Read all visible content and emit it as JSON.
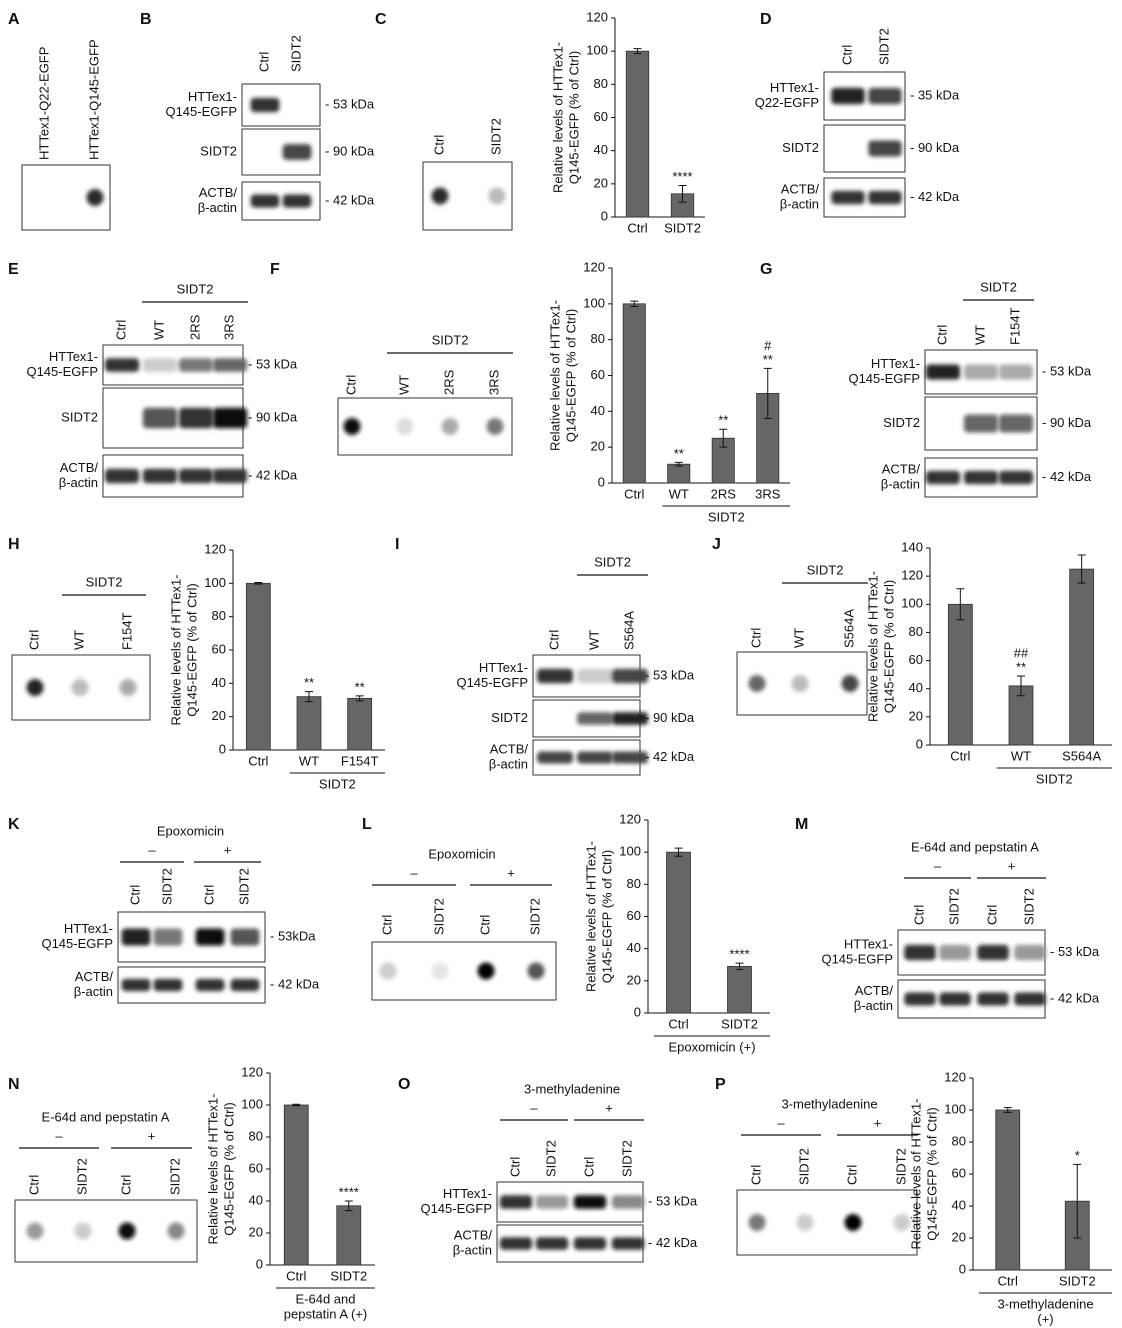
{
  "panels": [
    {
      "letter": "A",
      "type": "dot",
      "lanes": [
        "HTTex1-Q22-EGFP",
        "HTTex1-Q145-EGFP"
      ],
      "dots": [
        null,
        "#2a2a2a"
      ]
    },
    {
      "letter": "B",
      "type": "western",
      "lanes": [
        "Ctrl",
        "SIDT2"
      ],
      "rows": [
        {
          "label": [
            "HTTex1-",
            "Q145-EGFP"
          ],
          "kda": "- 53 kDa",
          "bands": [
            "#333",
            null
          ]
        },
        {
          "label": [
            "SIDT2"
          ],
          "kda": "- 90 kDa",
          "bands": [
            null,
            "#444"
          ]
        },
        {
          "label": [
            "ACTB/",
            "β-actin"
          ],
          "kda": "- 42 kDa",
          "bands": [
            "#333",
            "#333"
          ]
        }
      ]
    },
    {
      "letter": "C",
      "type": "dot",
      "lanes": [
        "Ctrl",
        "SIDT2"
      ],
      "dots": [
        "#2a2a2a",
        "#bbb"
      ]
    },
    {
      "letter": "D",
      "type": "western",
      "lanes": [
        "Ctrl",
        "SIDT2"
      ],
      "rows": [
        {
          "label": [
            "HTTex1-",
            "Q22-EGFP"
          ],
          "kda": "- 35 kDa",
          "bands": [
            "#222",
            "#444"
          ]
        },
        {
          "label": [
            "SIDT2"
          ],
          "kda": "- 90 kDa",
          "bands": [
            null,
            "#444"
          ]
        },
        {
          "label": [
            "ACTB/",
            "β-actin"
          ],
          "kda": "- 42 kDa",
          "bands": [
            "#333",
            "#333"
          ]
        }
      ]
    },
    {
      "letter": "E",
      "type": "western",
      "group": "SIDT2",
      "lanes": [
        "Ctrl",
        "WT",
        "2RS",
        "3RS"
      ],
      "rows": [
        {
          "label": [
            "HTTex1-",
            "Q145-EGFP"
          ],
          "kda": "- 53 kDa",
          "bands": [
            "#333",
            "#ccc",
            "#777",
            "#666"
          ]
        },
        {
          "label": [
            "SIDT2"
          ],
          "kda": "- 90 kDa",
          "bands": [
            null,
            "#555",
            "#333",
            "#111"
          ]
        },
        {
          "label": [
            "ACTB/",
            "β-actin"
          ],
          "kda": "- 42 kDa",
          "bands": [
            "#333",
            "#333",
            "#333",
            "#333"
          ]
        }
      ]
    },
    {
      "letter": "F",
      "type": "dot",
      "group": "SIDT2",
      "lanes": [
        "Ctrl",
        "WT",
        "2RS",
        "3RS"
      ],
      "dots": [
        "#111",
        "#ddd",
        "#aaa",
        "#777"
      ]
    },
    {
      "letter": "G",
      "type": "western",
      "group": "SIDT2",
      "lanes": [
        "Ctrl",
        "WT",
        "F154T"
      ],
      "rows": [
        {
          "label": [
            "HTTex1-",
            "Q145-EGFP"
          ],
          "kda": "- 53 kDa",
          "bands": [
            "#222",
            "#aaa",
            "#aaa"
          ]
        },
        {
          "label": [
            "SIDT2"
          ],
          "kda": "- 90 kDa",
          "bands": [
            null,
            "#666",
            "#666"
          ]
        },
        {
          "label": [
            "ACTB/",
            "β-actin"
          ],
          "kda": "- 42 kDa",
          "bands": [
            "#333",
            "#333",
            "#333"
          ]
        }
      ]
    },
    {
      "letter": "H",
      "type": "dot",
      "group": "SIDT2",
      "lanes": [
        "Ctrl",
        "WT",
        "F154T"
      ],
      "dots": [
        "#222",
        "#bbb",
        "#aaa"
      ]
    },
    {
      "letter": "I",
      "type": "western",
      "group": "SIDT2",
      "lanes": [
        "Ctrl",
        "WT",
        "S564A"
      ],
      "rows": [
        {
          "label": [
            "HTTex1-",
            "Q145-EGFP"
          ],
          "kda": "- 53 kDa",
          "bands": [
            "#333",
            "#ccc",
            "#444"
          ]
        },
        {
          "label": [
            "SIDT2"
          ],
          "kda": "- 90 kDa",
          "bands": [
            null,
            "#666",
            "#222"
          ]
        },
        {
          "label": [
            "ACTB/",
            "β-actin"
          ],
          "kda": "- 42 kDa",
          "bands": [
            "#444",
            "#444",
            "#444"
          ]
        }
      ]
    },
    {
      "letter": "J",
      "type": "dot",
      "group": "SIDT2",
      "lanes": [
        "Ctrl",
        "WT",
        "S564A"
      ],
      "dots": [
        "#666",
        "#bbb",
        "#444"
      ]
    },
    {
      "letter": "K",
      "type": "western",
      "treatment": "Epoxomicin",
      "conditions": [
        "–",
        "+"
      ],
      "lanes": [
        "Ctrl",
        "SIDT2",
        "Ctrl",
        "SIDT2"
      ],
      "rows": [
        {
          "label": [
            "HTTex1-",
            "Q145-EGFP"
          ],
          "kda": "- 53kDa",
          "bands": [
            "#222",
            "#777",
            "#111",
            "#555"
          ]
        },
        {
          "label": [
            "ACTB/",
            "β-actin"
          ],
          "kda": "- 42 kDa",
          "bands": [
            "#333",
            "#333",
            "#333",
            "#333"
          ]
        }
      ]
    },
    {
      "letter": "L",
      "type": "dot",
      "treatment": "Epoxomicin",
      "conditions": [
        "–",
        "+"
      ],
      "lanes": [
        "Ctrl",
        "SIDT2",
        "Ctrl",
        "SIDT2"
      ],
      "dots": [
        "#ccc",
        "#e4e4e4",
        "#000",
        "#555"
      ]
    },
    {
      "letter": "M",
      "type": "western",
      "treatment": "E-64d and pepstatin A",
      "conditions": [
        "–",
        "+"
      ],
      "lanes": [
        "Ctrl",
        "SIDT2",
        "Ctrl",
        "SIDT2"
      ],
      "rows": [
        {
          "label": [
            "HTTex1-",
            "Q145-EGFP"
          ],
          "kda": "- 53 kDa",
          "bands": [
            "#333",
            "#999",
            "#333",
            "#999"
          ]
        },
        {
          "label": [
            "ACTB/",
            "β-actin"
          ],
          "kda": "- 42 kDa",
          "bands": [
            "#333",
            "#333",
            "#333",
            "#333"
          ]
        }
      ]
    },
    {
      "letter": "N",
      "type": "dot",
      "treatment": "E-64d and pepstatin A",
      "conditions": [
        "–",
        "+"
      ],
      "lanes": [
        "Ctrl",
        "SIDT2",
        "Ctrl",
        "SIDT2"
      ],
      "dots": [
        "#999",
        "#ccc",
        "#111",
        "#888"
      ]
    },
    {
      "letter": "O",
      "type": "western",
      "treatment": "3-methyladenine",
      "conditions": [
        "–",
        "+"
      ],
      "lanes": [
        "Ctrl",
        "SIDT2",
        "Ctrl",
        "SIDT2"
      ],
      "rows": [
        {
          "label": [
            "HTTex1-",
            "Q145-EGFP"
          ],
          "kda": "- 53 kDa",
          "bands": [
            "#333",
            "#999",
            "#111",
            "#888"
          ]
        },
        {
          "label": [
            "ACTB/",
            "β-actin"
          ],
          "kda": "- 42 kDa",
          "bands": [
            "#333",
            "#333",
            "#333",
            "#333"
          ]
        }
      ]
    },
    {
      "letter": "P",
      "type": "dot",
      "treatment": "3-methyladenine",
      "conditions": [
        "–",
        "+"
      ],
      "lanes": [
        "Ctrl",
        "SIDT2",
        "Ctrl",
        "SIDT2"
      ],
      "dots": [
        "#777",
        "#ccc",
        "#000",
        "#ccc"
      ]
    }
  ],
  "chart_data": [
    {
      "type": "bar",
      "ylabel": [
        "Relative levels of HTTex1-",
        "Q145-EGFP (% of Ctrl)"
      ],
      "categories": [
        "Ctrl",
        "SIDT2"
      ],
      "values": [
        100,
        14
      ],
      "errors": [
        1.5,
        5
      ],
      "annotations": [
        null,
        [
          "****"
        ]
      ],
      "color": "#666",
      "ylim": [
        0,
        120
      ],
      "yticks": [
        0,
        20,
        40,
        60,
        80,
        100,
        120
      ]
    },
    {
      "type": "bar",
      "ylabel": [
        "Relative levels of HTTex1-",
        "Q145-EGFP (% of Ctrl)"
      ],
      "categories": [
        "Ctrl",
        "WT",
        "2RS",
        "3RS"
      ],
      "values": [
        100,
        10.5,
        25,
        50
      ],
      "errors": [
        1.5,
        1,
        5,
        14
      ],
      "annotations": [
        null,
        [
          "**"
        ],
        [
          "**"
        ],
        [
          "#",
          "**"
        ]
      ],
      "group_label": [
        "SIDT2"
      ],
      "color": "#666",
      "ylim": [
        0,
        120
      ],
      "yticks": [
        0,
        20,
        40,
        60,
        80,
        100,
        120
      ]
    },
    {
      "type": "bar",
      "ylabel": [
        "Relative levels of HTTex1-",
        "Q145-EGFP (% of Ctrl)"
      ],
      "categories": [
        "Ctrl",
        "WT",
        "F154T"
      ],
      "values": [
        100,
        32,
        31
      ],
      "errors": [
        0.5,
        3,
        1.5
      ],
      "annotations": [
        null,
        [
          "**"
        ],
        [
          "**"
        ]
      ],
      "group_label": [
        "SIDT2"
      ],
      "color": "#666",
      "ylim": [
        0,
        120
      ],
      "yticks": [
        0,
        20,
        40,
        60,
        80,
        100,
        120
      ]
    },
    {
      "type": "bar",
      "ylabel": [
        "Relative levels of HTTex1-",
        "Q145-EGFP (% of Ctrl)"
      ],
      "categories": [
        "Ctrl",
        "WT",
        "S564A"
      ],
      "values": [
        100,
        42,
        125
      ],
      "errors": [
        11,
        7,
        10
      ],
      "annotations": [
        null,
        [
          "##",
          "**"
        ],
        null
      ],
      "group_label": [
        "SIDT2"
      ],
      "color": "#666",
      "ylim": [
        0,
        140
      ],
      "yticks": [
        0,
        20,
        40,
        60,
        80,
        100,
        120,
        140
      ]
    },
    {
      "type": "bar",
      "ylabel": [
        "Relative levels of HTTex1-",
        "Q145-EGFP (% of Ctrl)"
      ],
      "categories": [
        "Ctrl",
        "SIDT2"
      ],
      "values": [
        100,
        29
      ],
      "errors": [
        2.5,
        2
      ],
      "annotations": [
        null,
        [
          "****"
        ]
      ],
      "group_label": [
        "Epoxomicin (+)"
      ],
      "color": "#666",
      "ylim": [
        0,
        120
      ],
      "yticks": [
        0,
        20,
        40,
        60,
        80,
        100,
        120
      ]
    },
    {
      "type": "bar",
      "ylabel": [
        "Relative levels of HTTex1-",
        "Q145-EGFP (% of Ctrl)"
      ],
      "categories": [
        "Ctrl",
        "SIDT2"
      ],
      "values": [
        100,
        37
      ],
      "errors": [
        0.5,
        3
      ],
      "annotations": [
        null,
        [
          "****"
        ]
      ],
      "group_label": [
        "E-64d and",
        "pepstatin A (+)"
      ],
      "color": "#666",
      "ylim": [
        0,
        120
      ],
      "yticks": [
        0,
        20,
        40,
        60,
        80,
        100,
        120
      ]
    },
    {
      "type": "bar",
      "ylabel": [
        "Relative levels of HTTex1-",
        "Q145-EGFP (% of Ctrl)"
      ],
      "categories": [
        "Ctrl",
        "SIDT2"
      ],
      "values": [
        100,
        43
      ],
      "errors": [
        1.5,
        23
      ],
      "annotations": [
        null,
        [
          "*"
        ]
      ],
      "group_label": [
        "3-methyladenine",
        "(+)"
      ],
      "color": "#666",
      "ylim": [
        0,
        120
      ],
      "yticks": [
        0,
        20,
        40,
        60,
        80,
        100,
        120
      ]
    }
  ]
}
